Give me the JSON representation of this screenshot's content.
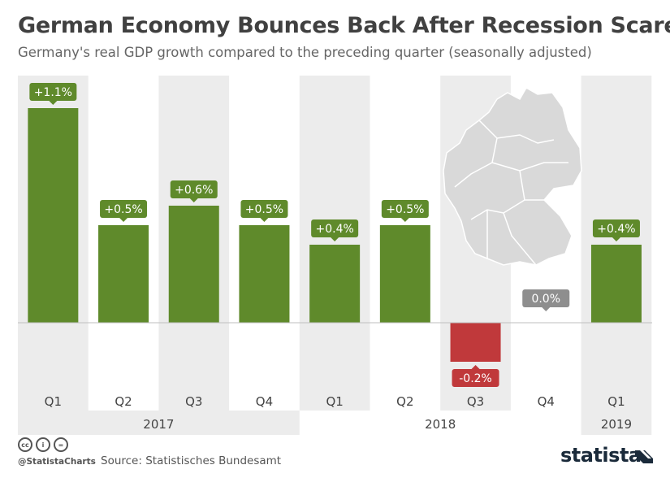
{
  "header": {
    "title": "German Economy Bounces Back After Recession Scare",
    "subtitle": "Germany's real GDP growth compared to the preceding quarter (seasonally adjusted)"
  },
  "chart_data": {
    "type": "bar",
    "title": "German Economy Bounces Back After Recession Scare",
    "subtitle": "Germany's real GDP growth compared to the preceding quarter (seasonally adjusted)",
    "xlabel": "",
    "ylabel": "",
    "categories": [
      "Q1",
      "Q2",
      "Q3",
      "Q4",
      "Q1",
      "Q2",
      "Q3",
      "Q4",
      "Q1"
    ],
    "years": [
      {
        "label": "2017",
        "quarters": 4
      },
      {
        "label": "2018",
        "quarters": 4
      },
      {
        "label": "2019",
        "quarters": 1
      }
    ],
    "values": [
      1.1,
      0.5,
      0.6,
      0.5,
      0.4,
      0.5,
      -0.2,
      0.0,
      0.4
    ],
    "value_labels": [
      "+1.1%",
      "+0.5%",
      "+0.6%",
      "+0.5%",
      "+0.4%",
      "+0.5%",
      "-0.2%",
      "0.0%",
      "+0.4%"
    ],
    "unit": "%",
    "grid": false,
    "legend": "none",
    "colors": {
      "positive": "#5f8a2b",
      "negative": "#c0393b",
      "zero": "#8e8e8e",
      "band": "#ececec"
    }
  },
  "footer": {
    "license_icons": [
      "cc-icon",
      "by-icon",
      "nd-icon"
    ],
    "license_glyphs": [
      "cc",
      "i",
      "="
    ],
    "handle": "@StatistaCharts",
    "source": "Source: Statistisches Bundesamt",
    "brand": "statista"
  }
}
